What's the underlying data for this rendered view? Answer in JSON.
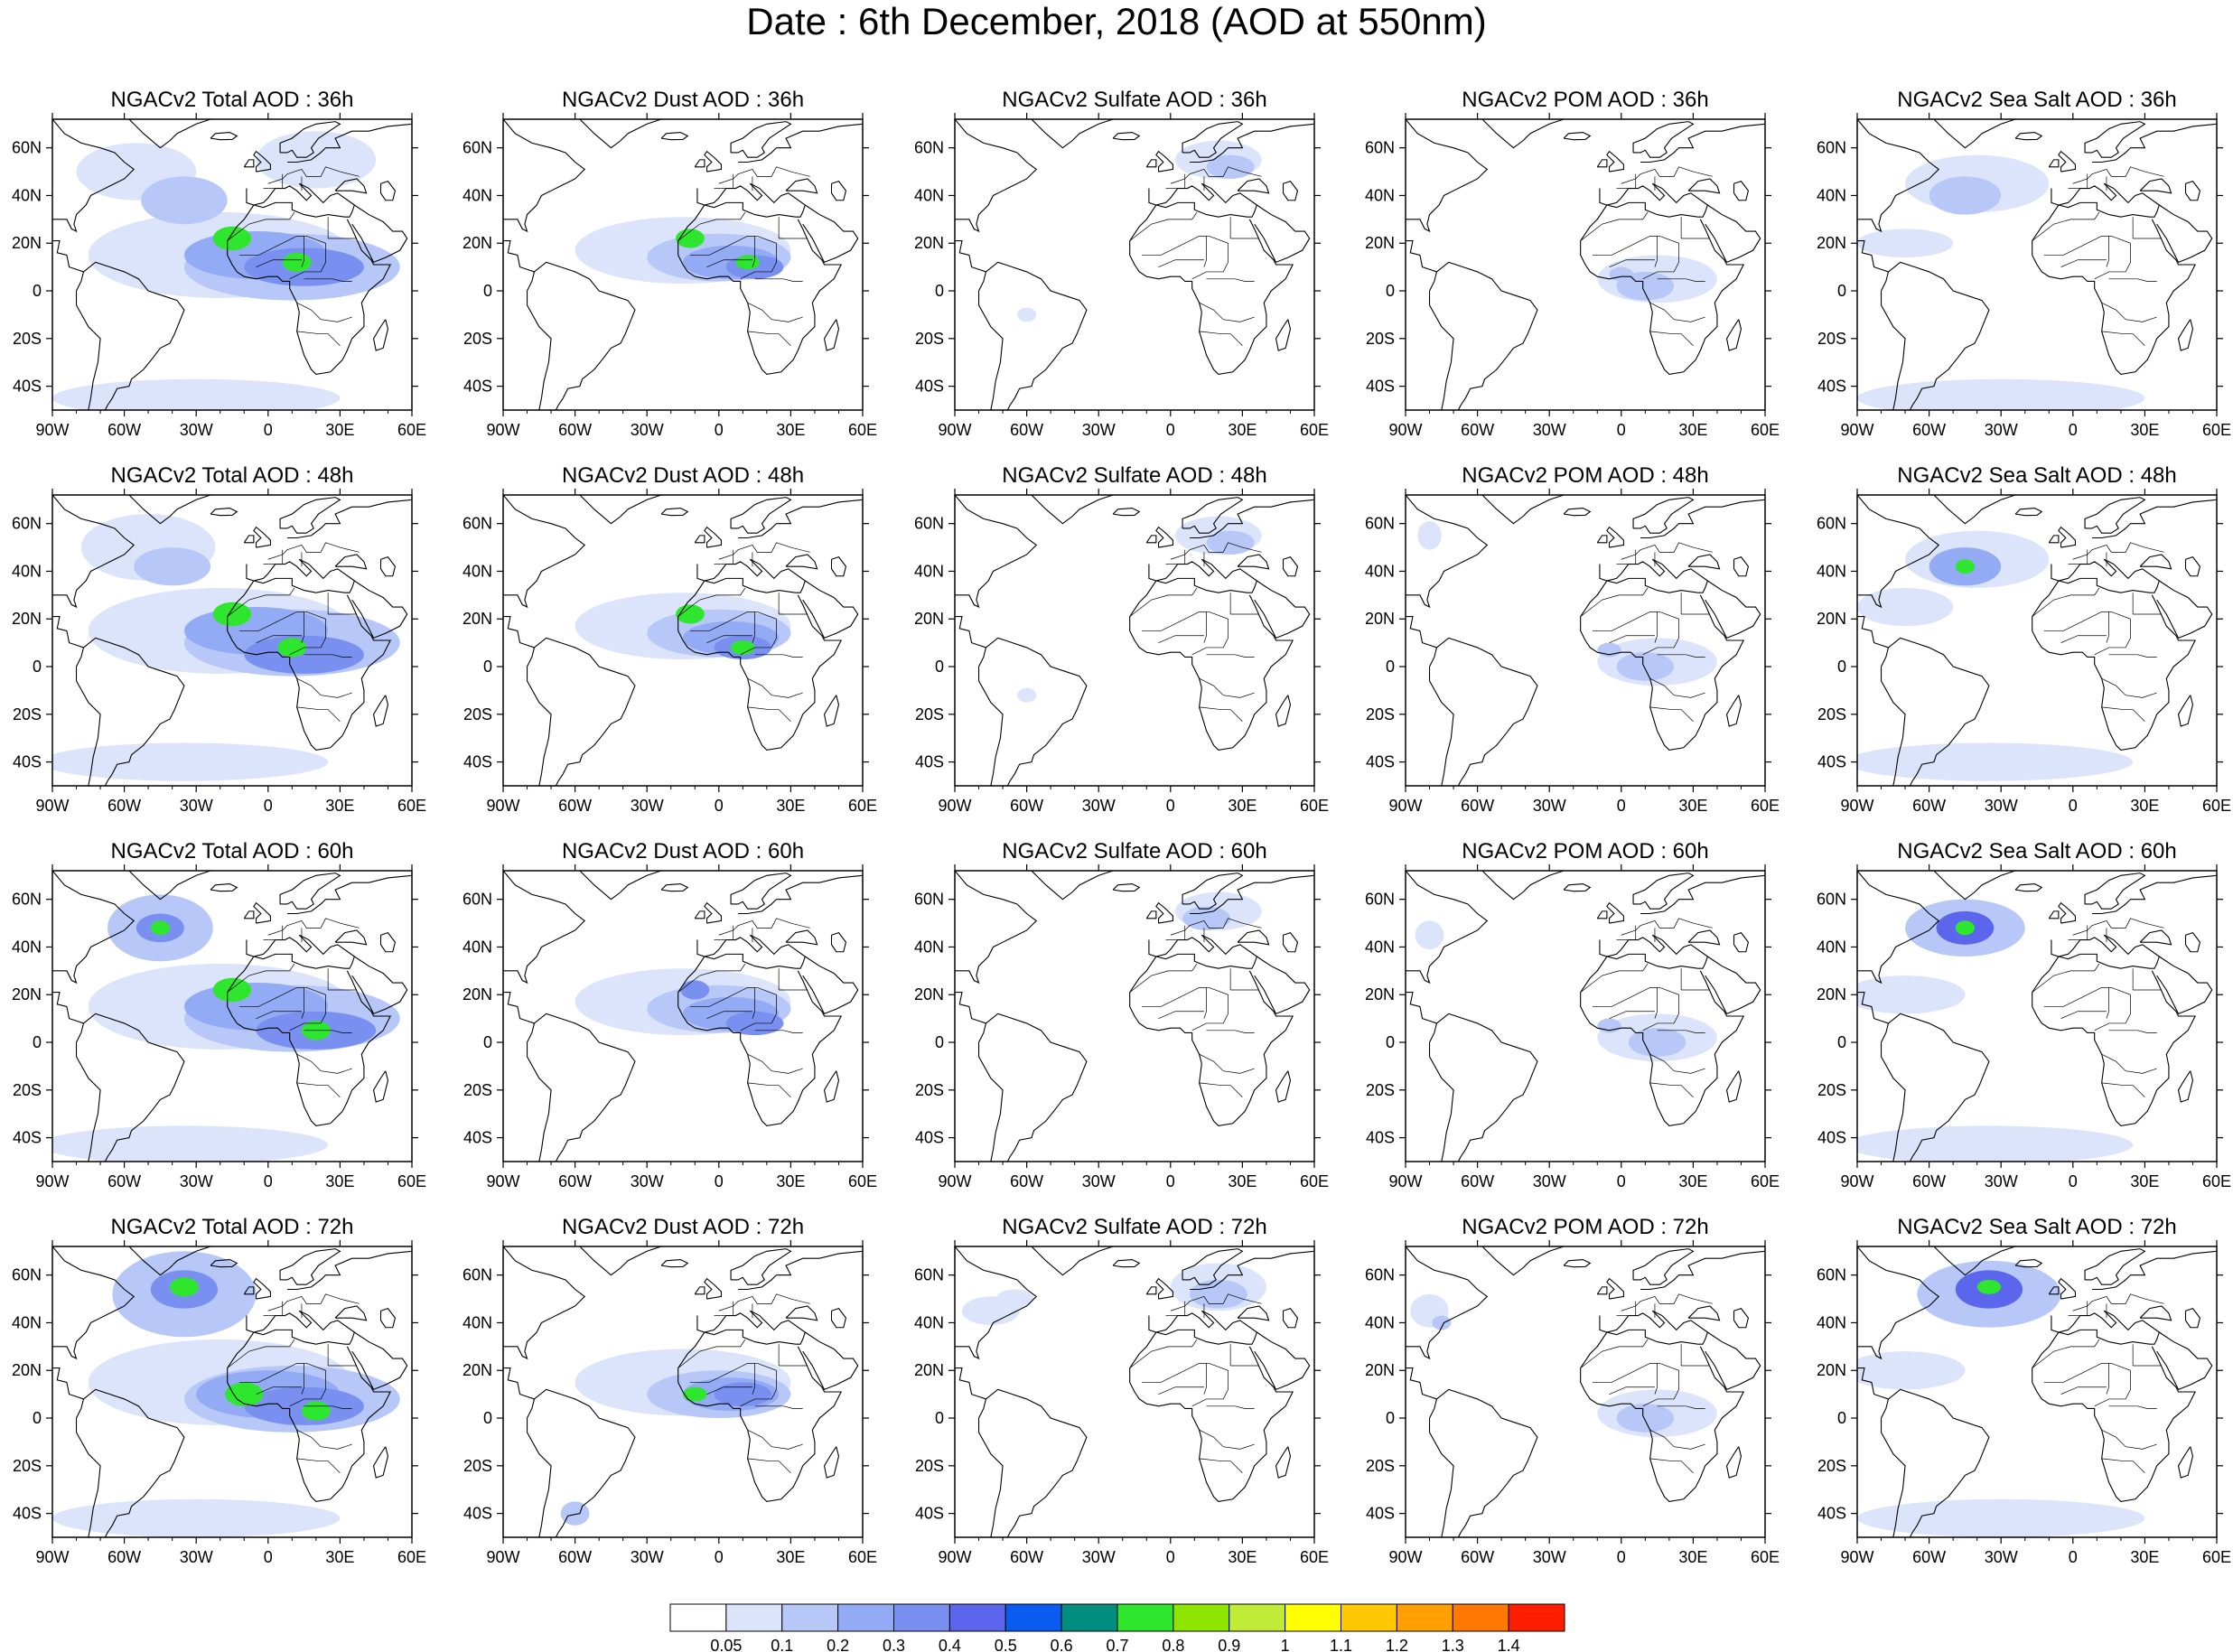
{
  "title": "Date : 6th December, 2018 (AOD at 550nm)",
  "lon_labels": [
    "90W",
    "60W",
    "30W",
    "0",
    "30E",
    "60E"
  ],
  "lat_labels": [
    "60N",
    "40N",
    "20N",
    "0",
    "20S",
    "40S"
  ],
  "rows": [
    {
      "hour": "36h",
      "titles": [
        "NGACv2 Total AOD : 36h",
        "NGACv2 Dust AOD : 36h",
        "NGACv2 Sulfate AOD : 36h",
        "NGACv2 POM AOD : 36h",
        "NGACv2 Sea Salt AOD : 36h"
      ]
    },
    {
      "hour": "48h",
      "titles": [
        "NGACv2 Total AOD : 48h",
        "NGACv2 Dust AOD : 48h",
        "NGACv2 Sulfate AOD : 48h",
        "NGACv2 POM AOD : 48h",
        "NGACv2 Sea Salt AOD : 48h"
      ]
    },
    {
      "hour": "60h",
      "titles": [
        "NGACv2 Total AOD : 60h",
        "NGACv2 Dust AOD : 60h",
        "NGACv2 Sulfate AOD : 60h",
        "NGACv2 POM AOD : 60h",
        "NGACv2 Sea Salt AOD : 60h"
      ]
    },
    {
      "hour": "72h",
      "titles": [
        "NGACv2 Total AOD : 72h",
        "NGACv2 Dust AOD : 72h",
        "NGACv2 Sulfate AOD : 72h",
        "NGACv2 POM AOD : 72h",
        "NGACv2 Sea Salt  AOD : 72h"
      ]
    }
  ],
  "colorbar": {
    "labels": [
      "0.05",
      "0.1",
      "0.2",
      "0.3",
      "0.4",
      "0.5",
      "0.6",
      "0.7",
      "0.8",
      "0.9",
      "1",
      "1.1",
      "1.2",
      "1.3",
      "1.4"
    ],
    "colors": [
      "#ffffff",
      "#dbe4fb",
      "#b7c8f8",
      "#93abf4",
      "#7a90f0",
      "#5c66ec",
      "#0a5cf0",
      "#008e80",
      "#2ee62e",
      "#8ee600",
      "#c0ec38",
      "#ffff00",
      "#ffc800",
      "#ffa000",
      "#ff7800",
      "#ff1e00"
    ]
  },
  "aerosol_colors": {
    "very_light": "#dbe4fb",
    "light": "#b7c8f8",
    "medium": "#93abf4",
    "strong": "#7a90f0",
    "intense": "#5c66ec",
    "peak": "#2ee62e"
  }
}
